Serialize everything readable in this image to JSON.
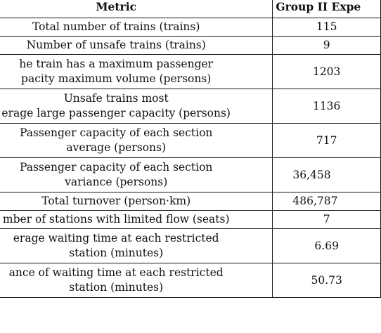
{
  "table": {
    "headers": {
      "metric": "Metric",
      "group": "Group II Expe"
    },
    "rows": [
      {
        "metric": [
          "Total number of trains (trains)"
        ],
        "value": "115"
      },
      {
        "metric": [
          "Number of unsafe trains (trains)"
        ],
        "value": "9"
      },
      {
        "metric": [
          "he train has a maximum passenger",
          "pacity maximum volume (persons)"
        ],
        "value": "1203"
      },
      {
        "metric": [
          "Unsafe trains most",
          "erage large passenger capacity (persons)"
        ],
        "value": "1136"
      },
      {
        "metric": [
          "Passenger capacity of each section",
          "average (persons)"
        ],
        "value": "717"
      },
      {
        "metric": [
          "Passenger capacity of each section",
          "variance (persons)"
        ],
        "value": "36,458"
      },
      {
        "metric": [
          "Total turnover (person·km)"
        ],
        "value": "486,787"
      },
      {
        "metric": [
          "mber of stations with limited flow (seats)"
        ],
        "value": "7"
      },
      {
        "metric": [
          "erage waiting time at each restricted",
          "station (minutes)"
        ],
        "value": "6.69"
      },
      {
        "metric": [
          "ance of waiting time at each restricted",
          "station (minutes)"
        ],
        "value": "50.73"
      }
    ]
  }
}
